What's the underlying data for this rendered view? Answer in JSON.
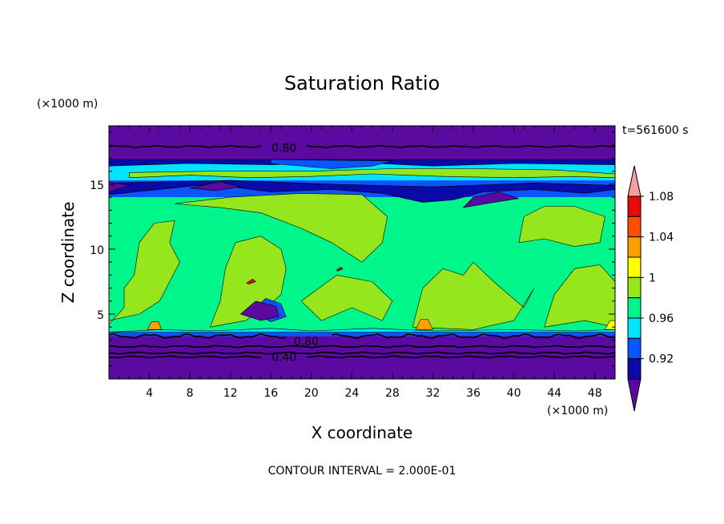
{
  "chart_data": {
    "type": "heatmap",
    "title": "Saturation Ratio",
    "xlabel": "X coordinate",
    "ylabel": "Z coordinate",
    "x_unit": "(×1000 m)",
    "y_unit": "(×1000 m)",
    "time_label": "t=561600 s",
    "footer": "CONTOUR INTERVAL = 2.000E-01",
    "xlim": [
      0,
      50
    ],
    "ylim": [
      0,
      19.5
    ],
    "xticks": [
      4,
      8,
      12,
      16,
      20,
      24,
      28,
      32,
      36,
      40,
      44,
      48
    ],
    "yticks": [
      5,
      10,
      15
    ],
    "contour_labels": [
      {
        "text": "0.80",
        "x": 17.3,
        "z": 17.8
      },
      {
        "text": "0.80",
        "x": 19.5,
        "z": 2.9
      },
      {
        "text": "0.40",
        "x": 17.3,
        "z": 1.7
      }
    ],
    "levels": [
      0.9,
      0.92,
      0.94,
      0.96,
      0.98,
      1.0,
      1.02,
      1.04,
      1.06,
      1.08,
      1.1
    ],
    "colorbar_labels": [
      "0.92",
      "0.96",
      "1",
      "1.04",
      "1.08"
    ],
    "colorbar_colors": [
      "#5a0aa0",
      "#0a0aa8",
      "#0a55ff",
      "#00e5ff",
      "#00f58a",
      "#96e61e",
      "#ffff00",
      "#ffa000",
      "#ff5000",
      "#e60a0a",
      "#f5a0a0"
    ],
    "layers": [
      {
        "z0": 0.0,
        "z1": 3.3,
        "color": "#5a0aa0"
      },
      {
        "z0": 3.3,
        "z1": 3.6,
        "color": "#0a55ff"
      },
      {
        "z0": 3.6,
        "z1": 14.0,
        "color": "#00f58a"
      },
      {
        "z0": 14.0,
        "z1": 15.3,
        "color": "#0a55ff"
      },
      {
        "z0": 15.3,
        "z1": 16.9,
        "color": "#00e5ff"
      },
      {
        "z0": 16.9,
        "z1": 19.5,
        "color": "#5a0aa0"
      }
    ],
    "regions": [
      {
        "color": "#96e61e",
        "pts": [
          [
            0,
            4.2
          ],
          [
            1.5,
            5.5
          ],
          [
            1.5,
            7
          ],
          [
            2.5,
            8
          ],
          [
            3,
            10.5
          ],
          [
            4.5,
            12
          ],
          [
            6.5,
            12.2
          ],
          [
            6,
            10.5
          ],
          [
            7,
            9
          ],
          [
            6,
            7.5
          ],
          [
            5,
            6
          ],
          [
            3,
            5
          ],
          [
            0,
            4.5
          ]
        ]
      },
      {
        "color": "#96e61e",
        "pts": [
          [
            10,
            4
          ],
          [
            11,
            6
          ],
          [
            11.5,
            8.5
          ],
          [
            12.5,
            10.5
          ],
          [
            15,
            11
          ],
          [
            17,
            10
          ],
          [
            17.5,
            8.5
          ],
          [
            17,
            6.5
          ],
          [
            15.5,
            5.5
          ],
          [
            13.5,
            4.5
          ]
        ]
      },
      {
        "color": "#96e61e",
        "pts": [
          [
            6.5,
            13.5
          ],
          [
            11,
            13.2
          ],
          [
            15,
            12.8
          ],
          [
            19,
            11.6
          ],
          [
            22,
            10.5
          ],
          [
            25,
            9
          ],
          [
            27,
            10.5
          ],
          [
            27.5,
            12.5
          ],
          [
            25,
            14.2
          ],
          [
            19,
            14.3
          ],
          [
            12,
            14
          ]
        ]
      },
      {
        "color": "#96e61e",
        "pts": [
          [
            19,
            6
          ],
          [
            22.5,
            8
          ],
          [
            26,
            7.5
          ],
          [
            28,
            6
          ],
          [
            27,
            4.5
          ],
          [
            24,
            5.5
          ],
          [
            21,
            4.5
          ]
        ]
      },
      {
        "color": "#96e61e",
        "pts": [
          [
            30,
            4
          ],
          [
            31,
            7
          ],
          [
            33,
            8.5
          ],
          [
            35,
            8
          ],
          [
            36,
            9
          ],
          [
            38,
            7.5
          ],
          [
            41,
            5.5
          ],
          [
            42,
            7
          ],
          [
            40,
            4.5
          ],
          [
            36,
            3.8
          ]
        ]
      },
      {
        "color": "#96e61e",
        "pts": [
          [
            40.5,
            10.5
          ],
          [
            41,
            12.5
          ],
          [
            43,
            13.3
          ],
          [
            46,
            13.3
          ],
          [
            49,
            12.5
          ],
          [
            48.5,
            10.5
          ],
          [
            46,
            10.2
          ],
          [
            43,
            10.8
          ]
        ]
      },
      {
        "color": "#96e61e",
        "pts": [
          [
            43,
            4
          ],
          [
            44,
            6.5
          ],
          [
            46,
            8.5
          ],
          [
            48.5,
            8.8
          ],
          [
            50,
            7.5
          ],
          [
            50,
            4
          ],
          [
            47,
            4.5
          ]
        ]
      },
      {
        "color": "#96e61e",
        "pts": [
          [
            2,
            15.5
          ],
          [
            8,
            15.7
          ],
          [
            14,
            15.5
          ],
          [
            20,
            15.6
          ],
          [
            26,
            15.8
          ],
          [
            33,
            15.6
          ],
          [
            40,
            15.5
          ],
          [
            46,
            15.6
          ],
          [
            50,
            15.5
          ],
          [
            50,
            15.8
          ],
          [
            44,
            16.1
          ],
          [
            36,
            16.2
          ],
          [
            28,
            16.2
          ],
          [
            20,
            16.0
          ],
          [
            10,
            16.0
          ],
          [
            2,
            15.9
          ]
        ]
      },
      {
        "color": "#00e5ff",
        "pts": [
          [
            0,
            3.6
          ],
          [
            5,
            3.8
          ],
          [
            10,
            3.7
          ],
          [
            16,
            3.9
          ],
          [
            20,
            3.7
          ],
          [
            26,
            3.9
          ],
          [
            32,
            3.7
          ],
          [
            40,
            3.8
          ],
          [
            46,
            3.7
          ],
          [
            50,
            3.8
          ],
          [
            50,
            3.6
          ],
          [
            0,
            3.6
          ]
        ]
      },
      {
        "color": "#0a55ff",
        "pts": [
          [
            14,
            5.2
          ],
          [
            15.5,
            6.2
          ],
          [
            17,
            5.8
          ],
          [
            17.5,
            4.8
          ],
          [
            16,
            4.4
          ]
        ]
      },
      {
        "color": "#0a0aa8",
        "pts": [
          [
            0,
            14.2
          ],
          [
            5,
            14.6
          ],
          [
            10,
            15
          ],
          [
            16,
            14.4
          ],
          [
            22,
            14.6
          ],
          [
            27,
            14.3
          ],
          [
            31,
            13.6
          ],
          [
            34,
            13.8
          ],
          [
            37,
            14.4
          ],
          [
            42,
            14.6
          ],
          [
            47,
            14.3
          ],
          [
            50,
            14.6
          ],
          [
            50,
            14.9
          ],
          [
            42,
            15.1
          ],
          [
            32,
            14.8
          ],
          [
            22,
            15.0
          ],
          [
            12,
            15.3
          ],
          [
            0,
            15.1
          ]
        ]
      },
      {
        "color": "#5a0aa0",
        "pts": [
          [
            0,
            14.4
          ],
          [
            2,
            14.9
          ],
          [
            0,
            15.2
          ]
        ]
      },
      {
        "color": "#5a0aa0",
        "pts": [
          [
            8,
            14.7
          ],
          [
            11,
            15.2
          ],
          [
            13,
            14.8
          ],
          [
            10.5,
            14.5
          ]
        ]
      },
      {
        "color": "#5a0aa0",
        "pts": [
          [
            35,
            13.2
          ],
          [
            38,
            13.6
          ],
          [
            40.5,
            13.9
          ],
          [
            38.5,
            14.4
          ],
          [
            36,
            14.0
          ]
        ]
      },
      {
        "color": "#5a0aa0",
        "pts": [
          [
            13,
            5.0
          ],
          [
            14.5,
            6.0
          ],
          [
            16.5,
            5.6
          ],
          [
            16.8,
            4.8
          ],
          [
            15,
            4.5
          ]
        ]
      },
      {
        "color": "#0a0aa8",
        "pts": [
          [
            0,
            16.4
          ],
          [
            8,
            16.6
          ],
          [
            16,
            16.5
          ],
          [
            24,
            16.7
          ],
          [
            32,
            16.4
          ],
          [
            40,
            16.6
          ],
          [
            50,
            16.5
          ],
          [
            50,
            16.9
          ],
          [
            0,
            16.9
          ]
        ]
      },
      {
        "color": "#0a55ff",
        "pts": [
          [
            16,
            16.6
          ],
          [
            22,
            16.2
          ],
          [
            26,
            16.4
          ],
          [
            28,
            16.8
          ],
          [
            16,
            16.9
          ]
        ]
      },
      {
        "color": "#ffa000",
        "pts": [
          [
            30.3,
            3.8
          ],
          [
            30.8,
            4.6
          ],
          [
            31.5,
            4.6
          ],
          [
            32,
            3.8
          ]
        ]
      },
      {
        "color": "#ffa000",
        "pts": [
          [
            3.8,
            3.8
          ],
          [
            4.2,
            4.4
          ],
          [
            4.9,
            4.4
          ],
          [
            5.2,
            3.8
          ]
        ]
      },
      {
        "color": "#ffff00",
        "pts": [
          [
            49,
            3.8
          ],
          [
            49.5,
            4.5
          ],
          [
            50,
            4.5
          ],
          [
            50,
            3.8
          ]
        ]
      },
      {
        "color": "#e60a0a",
        "pts": [
          [
            13.6,
            7.4
          ],
          [
            14.2,
            7.7
          ],
          [
            14.5,
            7.5
          ],
          [
            13.8,
            7.3
          ]
        ]
      },
      {
        "color": "#e60a0a",
        "pts": [
          [
            22.5,
            8.4
          ],
          [
            22.9,
            8.6
          ],
          [
            23.1,
            8.5
          ],
          [
            22.6,
            8.3
          ]
        ]
      }
    ],
    "contours": [
      {
        "z": 17.9,
        "amp": 0.05,
        "label_gap": [
          15.3,
          19.2
        ],
        "note": "0.80"
      },
      {
        "z": 3.3,
        "amp": 0.12,
        "label_gap": [
          17.6,
          21.6
        ],
        "note": "0.80"
      },
      {
        "z": 2.5,
        "amp": 0.05,
        "label_gap": null
      },
      {
        "z": 2.0,
        "amp": 0.05,
        "label_gap": null
      },
      {
        "z": 1.7,
        "amp": 0.05,
        "label_gap": [
          15.3,
          19.2
        ],
        "note": "0.40"
      }
    ]
  }
}
